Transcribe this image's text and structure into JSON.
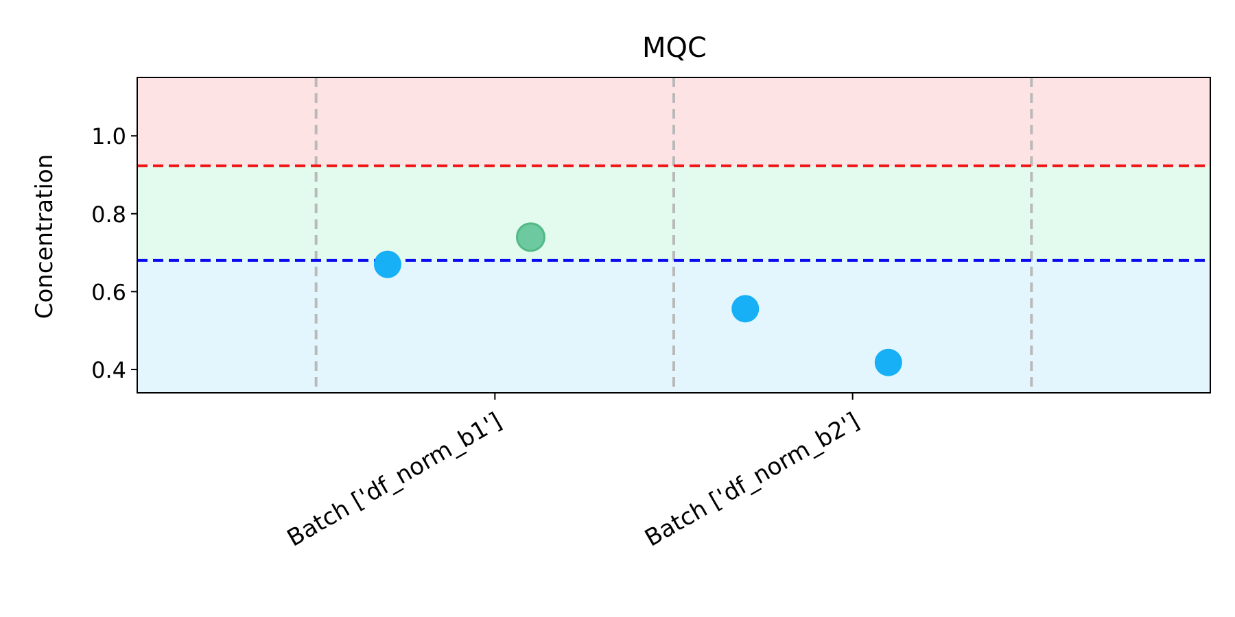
{
  "chart_data": {
    "type": "scatter",
    "title": "MQC",
    "xlabel": "",
    "ylabel": "Concentration",
    "categories": [
      "Batch ['df_norm_b1']",
      "Batch ['df_norm_b2']"
    ],
    "xlim": [
      -0.5,
      2.5
    ],
    "ylim": [
      0.34,
      1.15
    ],
    "y_ticks": [
      0.4,
      0.6,
      0.8,
      1.0
    ],
    "y_tick_labels": [
      "0.4",
      "0.6",
      "0.8",
      "1.0"
    ],
    "bands": [
      {
        "from": 0.34,
        "to": 0.68,
        "color": "#e3f6fd"
      },
      {
        "from": 0.68,
        "to": 0.923,
        "color": "#e2fbee"
      },
      {
        "from": 0.923,
        "to": 1.15,
        "color": "#fee3e4"
      }
    ],
    "hlines": [
      {
        "y": 0.923,
        "color": "#f01414"
      },
      {
        "y": 0.68,
        "color": "#0b0bf0"
      }
    ],
    "vlines": {
      "x": [
        0,
        1,
        2
      ],
      "color": "#b9b9b9"
    },
    "points": [
      {
        "x": 0.2,
        "y": 0.67,
        "color": "#17b0f7"
      },
      {
        "x": 0.6,
        "y": 0.74,
        "color": "#6dc9a0"
      },
      {
        "x": 1.2,
        "y": 0.556,
        "color": "#17b0f7"
      },
      {
        "x": 1.6,
        "y": 0.418,
        "color": "#17b0f7"
      }
    ],
    "grid": false,
    "legend": "none"
  }
}
